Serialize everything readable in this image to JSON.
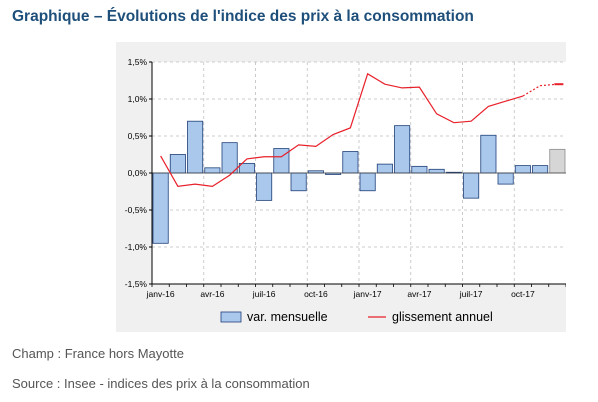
{
  "header": {
    "title": "Graphique – Évolutions de l'indice des prix à la consommation"
  },
  "footer": {
    "champ": "Champ : France hors Mayotte",
    "source": "Source : Insee - indices des prix à la consommation"
  },
  "colors": {
    "bar_fill": "#a9c8ec",
    "bar_stroke": "#1e3f78",
    "bar_forecast_fill": "#d6d6d6",
    "line": "#e8202a",
    "grid": "#bfbfbf",
    "axis": "#000000",
    "panel": "#f0f0f0"
  },
  "chart_data": {
    "type": "bar",
    "title": "",
    "xlabel": "",
    "ylabel": "",
    "ylim": [
      -1.5,
      1.5
    ],
    "yticks": [
      -1.5,
      -1.0,
      -0.5,
      0.0,
      0.5,
      1.0,
      1.5
    ],
    "ytick_labels": [
      "-1,5%",
      "-1,0%",
      "-0,5%",
      "0,0%",
      "0,5%",
      "1,0%",
      "1,5%"
    ],
    "grid": true,
    "legend_position": "bottom",
    "categories": [
      "janv-16",
      "févr-16",
      "mars-16",
      "avr-16",
      "mai-16",
      "juin-16",
      "juil-16",
      "août-16",
      "sept-16",
      "oct-16",
      "nov-16",
      "déc-16",
      "janv-17",
      "févr-17",
      "mars-17",
      "avr-17",
      "mai-17",
      "juin-17",
      "juil-17",
      "août-17",
      "sept-17",
      "oct-17",
      "nov-17",
      "déc-17"
    ],
    "xtick_labels": [
      {
        "index": 0,
        "label": "janv-16"
      },
      {
        "index": 3,
        "label": "avr-16"
      },
      {
        "index": 6,
        "label": "juil-16"
      },
      {
        "index": 9,
        "label": "oct-16"
      },
      {
        "index": 12,
        "label": "janv-17"
      },
      {
        "index": 15,
        "label": "avr-17"
      },
      {
        "index": 18,
        "label": "juil-17"
      },
      {
        "index": 21,
        "label": "oct-17"
      }
    ],
    "series": [
      {
        "name": "var. mensuelle",
        "kind": "bar",
        "values": [
          -0.95,
          0.25,
          0.7,
          0.07,
          0.41,
          0.13,
          -0.37,
          0.33,
          -0.24,
          0.03,
          -0.02,
          0.29,
          -0.24,
          0.12,
          0.64,
          0.09,
          0.05,
          0.01,
          -0.34,
          0.51,
          -0.15,
          0.1,
          0.1,
          0.32
        ],
        "forecast_from_index": 23
      },
      {
        "name": "glissement annuel",
        "kind": "line",
        "values": [
          0.23,
          -0.18,
          -0.15,
          -0.18,
          -0.03,
          0.19,
          0.22,
          0.22,
          0.38,
          0.36,
          0.52,
          0.61,
          1.34,
          1.2,
          1.15,
          1.16,
          0.8,
          0.68,
          0.7,
          0.9,
          0.97,
          1.04,
          1.18,
          1.2
        ],
        "forecast_from_index": 22
      }
    ]
  }
}
